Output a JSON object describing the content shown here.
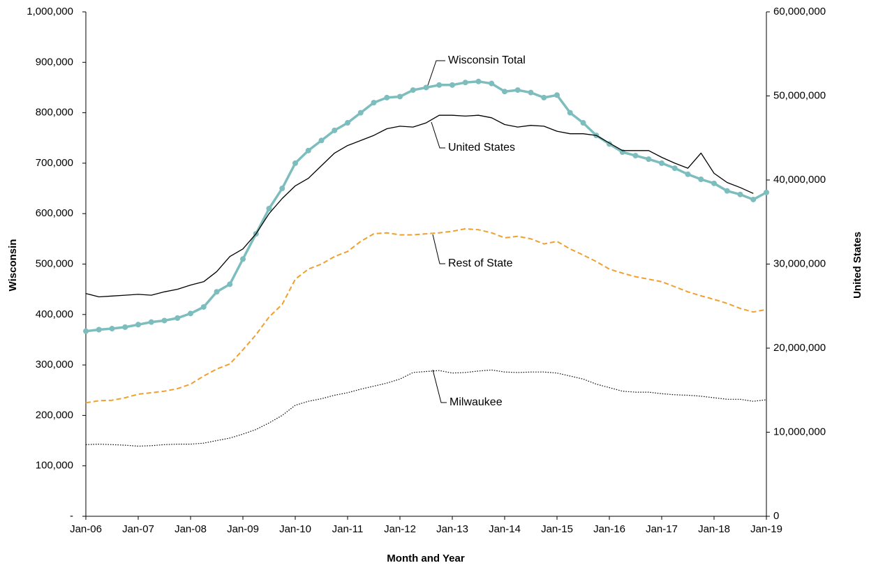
{
  "chart_data": {
    "type": "line",
    "xlabel": "Month and Year",
    "ylabel": "Wisconsin",
    "y2label": "United States",
    "x": [
      2006,
      2006.25,
      2006.5,
      2006.75,
      2007,
      2007.25,
      2007.5,
      2007.75,
      2008,
      2008.25,
      2008.5,
      2008.75,
      2009,
      2009.25,
      2009.5,
      2009.75,
      2010,
      2010.25,
      2010.5,
      2010.75,
      2011,
      2011.25,
      2011.5,
      2011.75,
      2012,
      2012.25,
      2012.5,
      2012.75,
      2013,
      2013.25,
      2013.5,
      2013.75,
      2014,
      2014.25,
      2014.5,
      2014.75,
      2015,
      2015.25,
      2015.5,
      2015.75,
      2016,
      2016.25,
      2016.5,
      2016.75,
      2017,
      2017.25,
      2017.5,
      2017.75,
      2018,
      2018.25,
      2018.5,
      2018.75,
      2019
    ],
    "xlim": [
      2006,
      2019
    ],
    "xticks": [
      {
        "value": 2006,
        "label": "Jan-06"
      },
      {
        "value": 2007,
        "label": "Jan-07"
      },
      {
        "value": 2008,
        "label": "Jan-08"
      },
      {
        "value": 2009,
        "label": "Jan-09"
      },
      {
        "value": 2010,
        "label": "Jan-10"
      },
      {
        "value": 2011,
        "label": "Jan-11"
      },
      {
        "value": 2012,
        "label": "Jan-12"
      },
      {
        "value": 2013,
        "label": "Jan-13"
      },
      {
        "value": 2014,
        "label": "Jan-14"
      },
      {
        "value": 2015,
        "label": "Jan-15"
      },
      {
        "value": 2016,
        "label": "Jan-16"
      },
      {
        "value": 2017,
        "label": "Jan-17"
      },
      {
        "value": 2018,
        "label": "Jan-18"
      },
      {
        "value": 2019,
        "label": "Jan-19"
      }
    ],
    "ylim": [
      0,
      1000000
    ],
    "yticks": [
      {
        "value": 0,
        "label": "-"
      },
      {
        "value": 100000,
        "label": "100,000"
      },
      {
        "value": 200000,
        "label": "200,000"
      },
      {
        "value": 300000,
        "label": "300,000"
      },
      {
        "value": 400000,
        "label": "400,000"
      },
      {
        "value": 500000,
        "label": "500,000"
      },
      {
        "value": 600000,
        "label": "600,000"
      },
      {
        "value": 700000,
        "label": "700,000"
      },
      {
        "value": 800000,
        "label": "800,000"
      },
      {
        "value": 900000,
        "label": "900,000"
      },
      {
        "value": 1000000,
        "label": "1,000,000"
      }
    ],
    "y2lim": [
      0,
      60000000
    ],
    "y2ticks": [
      0,
      {
        "value": 10000000,
        "label": "10,000,000"
      },
      {
        "value": 20000000,
        "label": "20,000,000"
      },
      {
        "value": 30000000,
        "label": "30,000,000"
      },
      {
        "value": 40000000,
        "label": "40,000,000"
      },
      {
        "value": 50000000,
        "label": "50,000,000"
      },
      {
        "value": 60000000,
        "label": "60,000,000"
      }
    ],
    "grid": false,
    "series": [
      {
        "name": "Wisconsin Total",
        "color": "#7dbdbd",
        "line_style": "solid",
        "marker": "circle",
        "values": [
          367000,
          370000,
          372000,
          375000,
          380000,
          385000,
          388000,
          393000,
          402000,
          415000,
          445000,
          460000,
          510000,
          560000,
          610000,
          650000,
          700000,
          725000,
          745000,
          765000,
          780000,
          800000,
          820000,
          830000,
          832000,
          845000,
          850000,
          855000,
          855000,
          860000,
          862000,
          858000,
          842000,
          845000,
          840000,
          830000,
          835000,
          800000,
          780000,
          755000,
          738000,
          722000,
          715000,
          708000,
          700000,
          690000,
          678000,
          668000,
          660000,
          645000,
          638000,
          628000,
          642000
        ]
      },
      {
        "name": "United States",
        "color": "#000000",
        "line_style": "solid",
        "axis": "y2",
        "values": [
          26500000,
          26100000,
          26200000,
          26300000,
          26400000,
          26300000,
          26700000,
          27000000,
          27500000,
          27900000,
          29100000,
          30900000,
          31800000,
          33600000,
          36000000,
          37800000,
          39300000,
          40200000,
          41700000,
          43200000,
          44100000,
          44700000,
          45300000,
          46100000,
          46400000,
          46300000,
          46800000,
          47700000,
          47700000,
          47600000,
          47700000,
          47400000,
          46600000,
          46300000,
          46500000,
          46400000,
          45800000,
          45500000,
          45500000,
          45300000,
          44400000,
          43500000,
          43500000,
          43500000,
          42700000,
          42000000,
          41400000,
          43200000,
          40800000,
          39700000,
          39100000,
          38400000,
          null
        ]
      },
      {
        "name": "Rest of State",
        "color": "#f0a030",
        "line_style": "dashed",
        "values": [
          225000,
          229000,
          230000,
          235000,
          242000,
          245000,
          248000,
          253000,
          262000,
          278000,
          292000,
          302000,
          330000,
          360000,
          395000,
          420000,
          470000,
          490000,
          500000,
          515000,
          525000,
          545000,
          560000,
          562000,
          558000,
          558000,
          560000,
          562000,
          565000,
          570000,
          568000,
          562000,
          552000,
          555000,
          550000,
          540000,
          545000,
          530000,
          518000,
          505000,
          490000,
          482000,
          475000,
          470000,
          465000,
          455000,
          445000,
          437000,
          430000,
          422000,
          412000,
          405000,
          410000
        ]
      },
      {
        "name": "Milwaukee",
        "color": "#000000",
        "line_style": "dotted",
        "values": [
          142000,
          143000,
          142000,
          141000,
          139000,
          140000,
          142000,
          143000,
          143000,
          145000,
          150000,
          155000,
          163000,
          172000,
          185000,
          200000,
          220000,
          228000,
          233000,
          240000,
          245000,
          252000,
          258000,
          264000,
          272000,
          285000,
          287000,
          289000,
          284000,
          285000,
          288000,
          290000,
          286000,
          285000,
          286000,
          286000,
          284000,
          278000,
          272000,
          262000,
          255000,
          248000,
          246000,
          246000,
          243000,
          241000,
          240000,
          238000,
          235000,
          232000,
          232000,
          228000,
          231000
        ]
      }
    ]
  }
}
